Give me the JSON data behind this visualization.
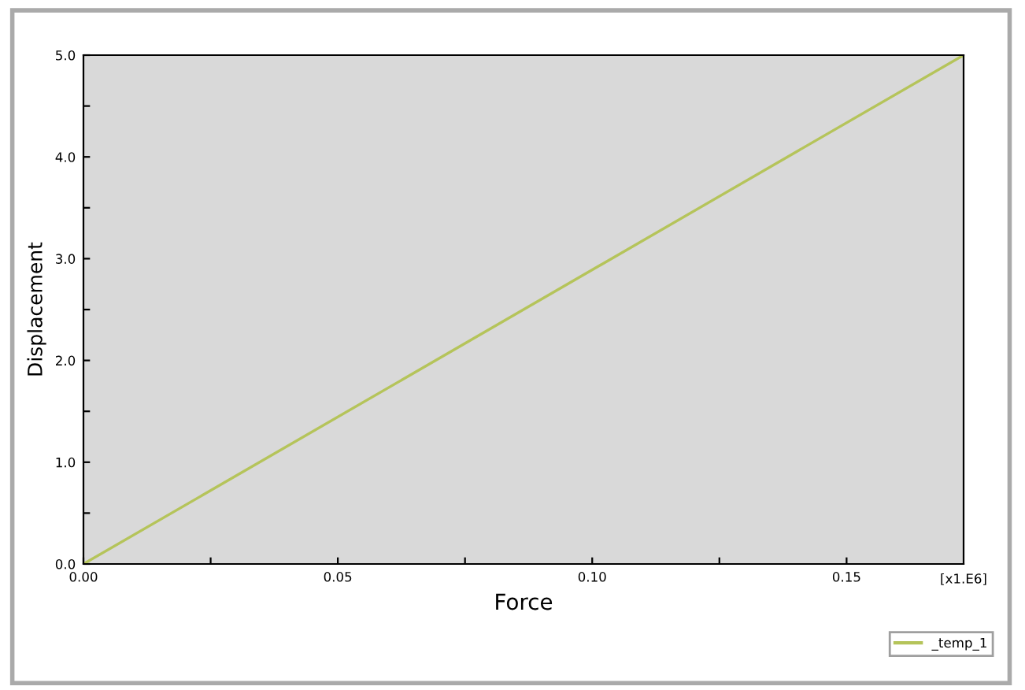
{
  "chart_data": {
    "type": "line",
    "xlabel": "Force",
    "ylabel": "Displacement",
    "x": [
      0,
      0.173
    ],
    "series": [
      {
        "name": "_temp_1",
        "color": "#b5c45a",
        "values": [
          0,
          5.0
        ]
      }
    ],
    "xlim": [
      0,
      0.173
    ],
    "ylim": [
      0,
      5.0
    ],
    "xticks": [
      {
        "value": 0,
        "label": "0.00"
      },
      {
        "value": 0.025,
        "label": null
      },
      0.05,
      {
        "value": 0.075,
        "label": null
      },
      {
        "value": 0.1,
        "label": "0.10"
      },
      {
        "value": 0.125,
        "label": null
      },
      0.15
    ],
    "yticks": [
      {
        "value": 0,
        "label": "0.0"
      },
      {
        "value": 0.5,
        "label": null
      },
      {
        "value": 1,
        "label": "1.0"
      },
      {
        "value": 1.5,
        "label": null
      },
      {
        "value": 2,
        "label": "2.0"
      },
      {
        "value": 2.5,
        "label": null
      },
      {
        "value": 3,
        "label": "3.0"
      },
      {
        "value": 3.5,
        "label": null
      },
      {
        "value": 4,
        "label": "4.0"
      },
      {
        "value": 4.5,
        "label": null
      },
      {
        "value": 5,
        "label": "5.0"
      }
    ],
    "annotations": [
      "[x1.E6]"
    ],
    "legend": "bottom right",
    "grid": false,
    "marker": "none",
    "line_style": "solid"
  }
}
